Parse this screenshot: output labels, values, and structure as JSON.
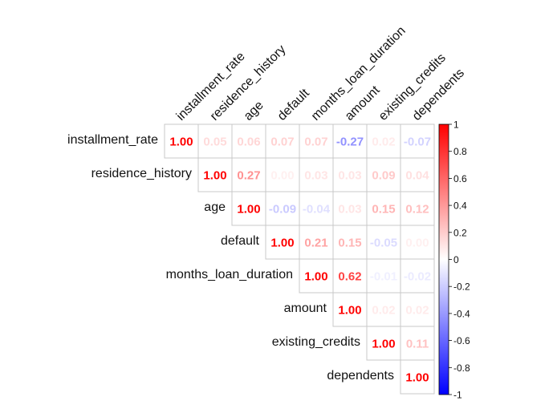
{
  "chart_data": {
    "type": "heatmap",
    "subtype": "correlation-matrix-upper-triangle",
    "variables": [
      "installment_rate",
      "residence_history",
      "age",
      "default",
      "months_loan_duration",
      "amount",
      "existing_credits",
      "dependents"
    ],
    "matrix": [
      [
        1.0,
        0.05,
        0.06,
        0.07,
        0.07,
        -0.27,
        0.02,
        -0.07
      ],
      [
        null,
        1.0,
        0.27,
        0.0,
        0.03,
        0.03,
        0.09,
        0.04
      ],
      [
        null,
        null,
        1.0,
        -0.09,
        -0.04,
        0.03,
        0.15,
        0.12
      ],
      [
        null,
        null,
        null,
        1.0,
        0.21,
        0.15,
        -0.05,
        0.0
      ],
      [
        null,
        null,
        null,
        null,
        1.0,
        0.62,
        -0.01,
        -0.02
      ],
      [
        null,
        null,
        null,
        null,
        null,
        1.0,
        0.02,
        0.02
      ],
      [
        null,
        null,
        null,
        null,
        null,
        null,
        1.0,
        0.11
      ],
      [
        null,
        null,
        null,
        null,
        null,
        null,
        null,
        1.0
      ]
    ],
    "value_format": "2-decimals",
    "colorbar": {
      "min": -1,
      "max": 1,
      "ticks": [
        1,
        0.8,
        0.6,
        0.4,
        0.2,
        0,
        -0.2,
        -0.4,
        -0.6,
        -0.8,
        -1
      ],
      "tick_labels": [
        "1",
        "0.8",
        "0.6",
        "0.4",
        "0.2",
        "0",
        "-0.2",
        "-0.4",
        "-0.6",
        "-0.8",
        "-1"
      ],
      "colors": {
        "negative": "#0000ff",
        "zero": "#ffffff",
        "positive": "#ff0000"
      }
    },
    "grid": true,
    "legend": "right"
  }
}
